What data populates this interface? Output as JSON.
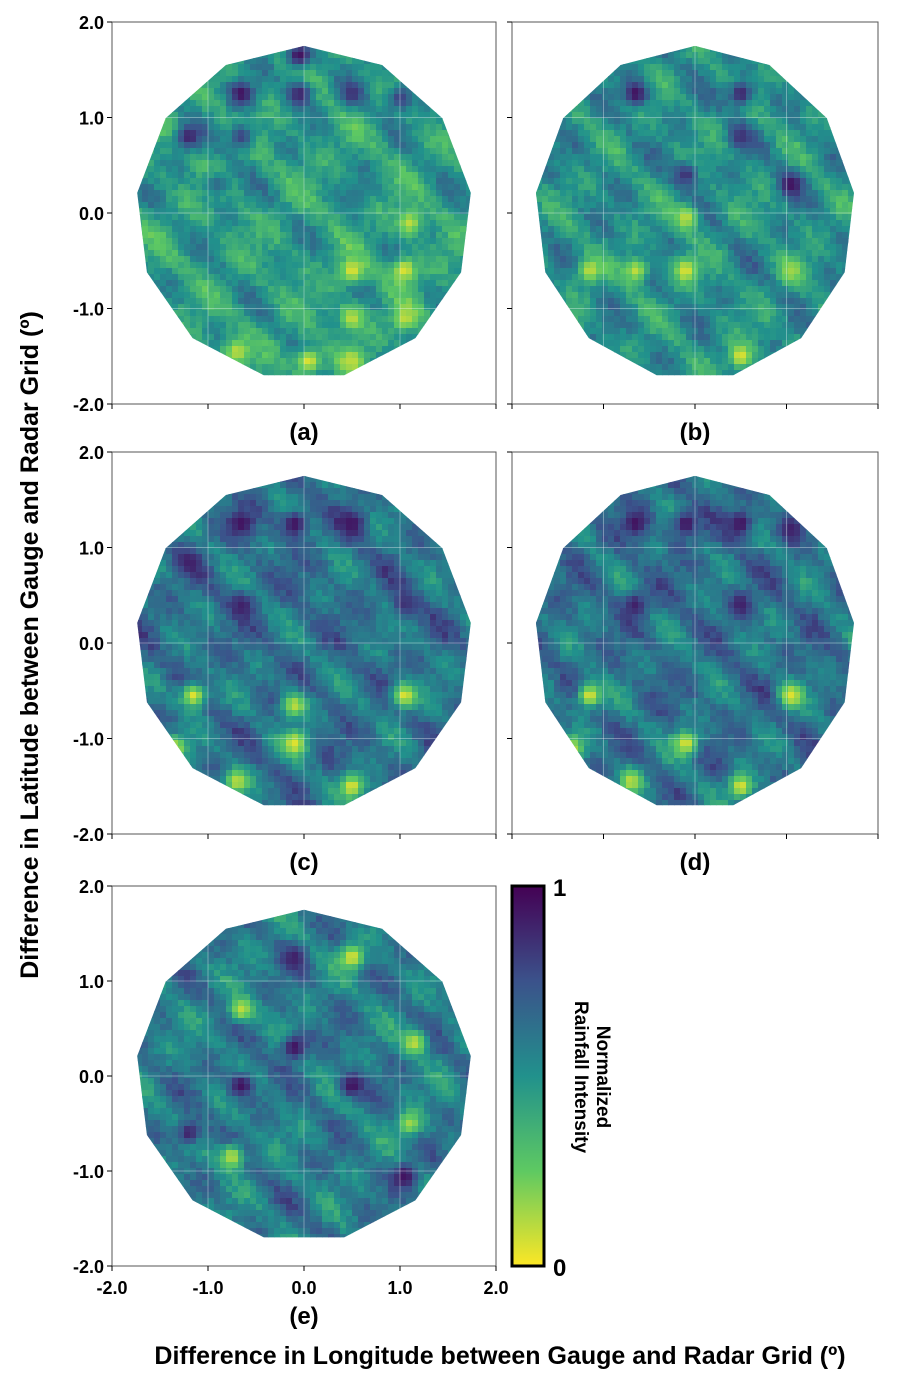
{
  "figure": {
    "ylabel": "Difference in Latitude between Gauge and Radar Grid (º)",
    "xlabel": "Difference in Longitude between Gauge and Radar Grid (º)"
  },
  "chart_data": [
    {
      "type": "heatmap",
      "panel": "(a)",
      "x_range": [
        -2.0,
        2.0
      ],
      "y_range": [
        -2.0,
        2.0
      ],
      "x_ticks": [
        "-2.0",
        "-1.0",
        "0.0",
        "1.0",
        "2.0"
      ],
      "y_ticks": [
        "2.0",
        "1.0",
        "0.0",
        "-1.0",
        "-2.0"
      ],
      "domain_shape": "circle",
      "domain_radius": 1.75,
      "show_x_tick_labels": false,
      "show_y_tick_labels": true,
      "base_intensity": 0.45,
      "seed": 11,
      "features": [
        [
          -0.65,
          1.25,
          0.95
        ],
        [
          -0.05,
          1.25,
          0.9
        ],
        [
          0.5,
          1.25,
          0.85
        ],
        [
          1.0,
          1.2,
          0.8
        ],
        [
          -1.2,
          0.8,
          0.9
        ],
        [
          -0.65,
          0.8,
          0.8
        ],
        [
          -0.9,
          0.3,
          0.65
        ],
        [
          0.55,
          0.2,
          0.6
        ],
        [
          0.5,
          -0.6,
          0.05
        ],
        [
          1.05,
          -0.6,
          0.05
        ],
        [
          0.5,
          -1.1,
          0.1
        ],
        [
          1.05,
          -1.1,
          0.1
        ],
        [
          0.05,
          -1.55,
          0.05
        ],
        [
          0.5,
          -1.55,
          0.1
        ],
        [
          -0.7,
          -1.45,
          0.1
        ],
        [
          1.1,
          -0.1,
          0.1
        ],
        [
          -0.05,
          1.65,
          0.95
        ]
      ]
    },
    {
      "type": "heatmap",
      "panel": "(b)",
      "x_range": [
        -2.0,
        2.0
      ],
      "y_range": [
        -2.0,
        2.0
      ],
      "x_ticks": [
        "-2.0",
        "-1.0",
        "0.0",
        "1.0",
        "2.0"
      ],
      "y_ticks": [
        "2.0",
        "1.0",
        "0.0",
        "-1.0",
        "-2.0"
      ],
      "domain_shape": "circle",
      "domain_radius": 1.75,
      "show_x_tick_labels": false,
      "show_y_tick_labels": false,
      "base_intensity": 0.5,
      "seed": 23,
      "features": [
        [
          -0.65,
          1.25,
          0.95
        ],
        [
          0.5,
          1.25,
          0.9
        ],
        [
          1.05,
          0.3,
          0.95
        ],
        [
          -0.1,
          0.4,
          0.85
        ],
        [
          0.5,
          0.8,
          0.85
        ],
        [
          -0.1,
          -0.05,
          0.1
        ],
        [
          -0.1,
          -0.6,
          0.05
        ],
        [
          -0.65,
          -0.6,
          0.1
        ],
        [
          -1.15,
          -0.6,
          0.1
        ],
        [
          -1.4,
          -1.2,
          0.05
        ],
        [
          0.5,
          -1.5,
          0.05
        ],
        [
          1.05,
          -0.6,
          0.15
        ]
      ]
    },
    {
      "type": "heatmap",
      "panel": "(c)",
      "x_range": [
        -2.0,
        2.0
      ],
      "y_range": [
        -2.0,
        2.0
      ],
      "x_ticks": [
        "-2.0",
        "-1.0",
        "0.0",
        "1.0",
        "2.0"
      ],
      "y_ticks": [
        "2.0",
        "1.0",
        "0.0",
        "-1.0",
        "-2.0"
      ],
      "domain_shape": "circle",
      "domain_radius": 1.75,
      "show_x_tick_labels": false,
      "show_y_tick_labels": true,
      "base_intensity": 0.62,
      "seed": 37,
      "features": [
        [
          -0.65,
          1.25,
          0.95
        ],
        [
          -0.1,
          1.25,
          0.95
        ],
        [
          0.5,
          1.25,
          0.95
        ],
        [
          -1.2,
          0.85,
          0.9
        ],
        [
          -0.65,
          0.4,
          0.9
        ],
        [
          1.05,
          0.4,
          0.85
        ],
        [
          1.05,
          -0.55,
          0.05
        ],
        [
          -1.15,
          -0.55,
          0.05
        ],
        [
          -0.1,
          -0.65,
          0.1
        ],
        [
          -0.1,
          -1.05,
          0.05
        ],
        [
          0.5,
          -1.5,
          0.05
        ],
        [
          -0.7,
          -1.45,
          0.1
        ],
        [
          -1.35,
          -1.1,
          0.1
        ]
      ]
    },
    {
      "type": "heatmap",
      "panel": "(d)",
      "x_range": [
        -2.0,
        2.0
      ],
      "y_range": [
        -2.0,
        2.0
      ],
      "x_ticks": [
        "-2.0",
        "-1.0",
        "0.0",
        "1.0",
        "2.0"
      ],
      "y_ticks": [
        "2.0",
        "1.0",
        "0.0",
        "-1.0",
        "-2.0"
      ],
      "domain_shape": "circle",
      "domain_radius": 1.75,
      "show_x_tick_labels": false,
      "show_y_tick_labels": false,
      "base_intensity": 0.62,
      "seed": 41,
      "features": [
        [
          -0.65,
          1.25,
          0.95
        ],
        [
          -0.1,
          1.25,
          0.95
        ],
        [
          0.5,
          1.25,
          0.95
        ],
        [
          1.05,
          1.2,
          0.9
        ],
        [
          -0.65,
          0.4,
          0.9
        ],
        [
          0.5,
          0.4,
          0.9
        ],
        [
          1.05,
          -0.55,
          0.05
        ],
        [
          -1.15,
          -0.55,
          0.05
        ],
        [
          -0.1,
          -1.05,
          0.05
        ],
        [
          0.5,
          -1.5,
          0.05
        ],
        [
          -0.7,
          -1.45,
          0.1
        ],
        [
          -1.35,
          -1.1,
          0.1
        ]
      ]
    },
    {
      "type": "heatmap",
      "panel": "(e)",
      "x_range": [
        -2.0,
        2.0
      ],
      "y_range": [
        -2.0,
        2.0
      ],
      "x_ticks": [
        "-2.0",
        "-1.0",
        "0.0",
        "1.0",
        "2.0"
      ],
      "y_ticks": [
        "2.0",
        "1.0",
        "0.0",
        "-1.0",
        "-2.0"
      ],
      "domain_shape": "circle",
      "domain_radius": 1.75,
      "show_x_tick_labels": true,
      "show_y_tick_labels": true,
      "base_intensity": 0.58,
      "seed": 53,
      "features": [
        [
          0.5,
          1.25,
          0.05
        ],
        [
          -0.65,
          0.7,
          0.1
        ],
        [
          1.15,
          0.35,
          0.1
        ],
        [
          -0.1,
          0.3,
          0.95
        ],
        [
          -0.65,
          -0.1,
          0.95
        ],
        [
          0.5,
          -0.1,
          0.95
        ],
        [
          1.05,
          -1.05,
          0.95
        ],
        [
          -0.75,
          -0.85,
          0.1
        ],
        [
          1.1,
          -0.5,
          0.15
        ],
        [
          -0.1,
          1.25,
          0.9
        ],
        [
          -1.2,
          -0.6,
          0.9
        ]
      ]
    }
  ],
  "colorbar": {
    "label_line1": "Normalized",
    "label_line2": "Rainfall Intensity",
    "max_label": "1",
    "min_label": "0",
    "colormap": [
      "#440154",
      "#3b528b",
      "#21918c",
      "#5ec962",
      "#fde725"
    ]
  }
}
